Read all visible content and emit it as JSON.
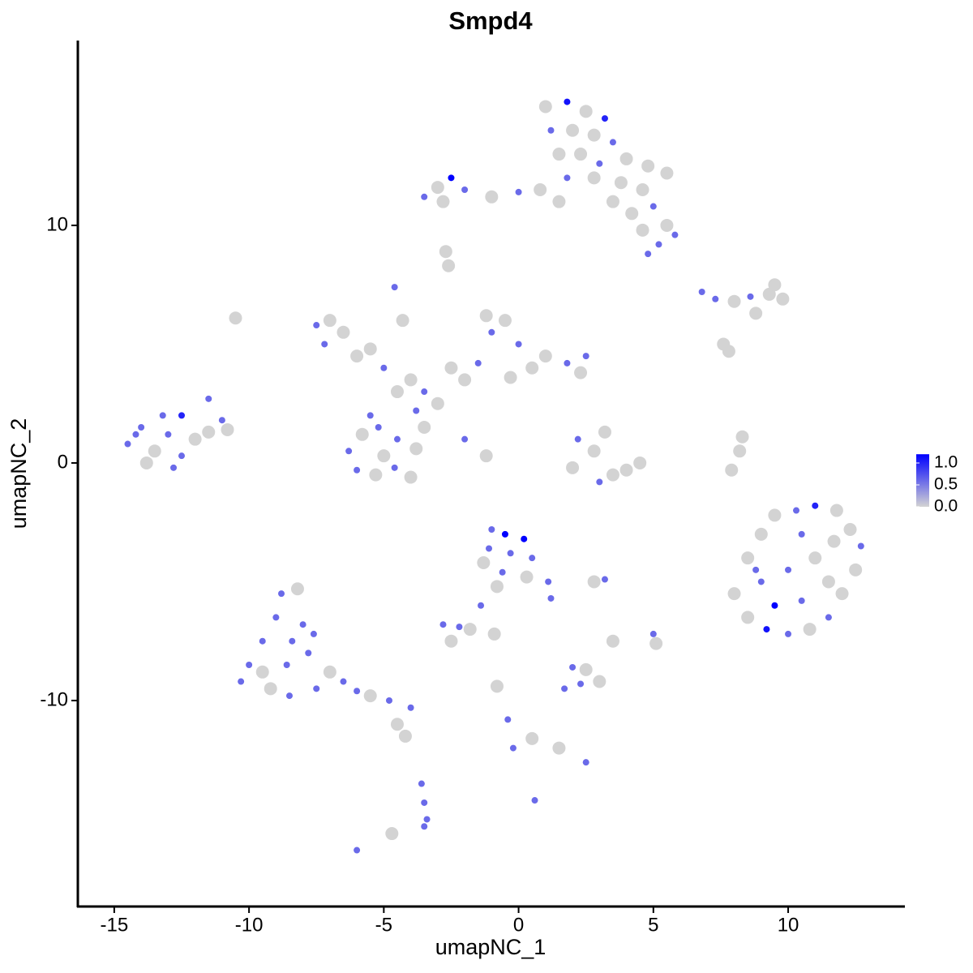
{
  "chart_data": {
    "type": "scatter",
    "title": "Smpd4",
    "xlabel": "umapNC_1",
    "ylabel": "umapNC_2",
    "x": [
      1,
      1.8,
      2.5,
      3.2,
      1.2,
      2,
      2.8,
      3.5,
      1.5,
      2.3,
      3,
      4,
      4.8,
      5.5,
      1.8,
      2.8,
      3.8,
      4.6,
      3.5,
      4.2,
      5,
      5.8,
      4.6,
      5.2,
      4.8,
      -3,
      -2.5,
      -2,
      -1,
      0,
      0.8,
      1.5,
      -3.5,
      -2.8,
      5.5,
      -14.5,
      -14,
      -13.5,
      -13,
      -12.5,
      -12,
      -13.2,
      -12.5,
      -11.5,
      -11,
      -13.8,
      -12.8,
      -11.5,
      -10.8,
      -14.2,
      -6.3,
      -5.8,
      -5.2,
      -4.5,
      -3.8,
      -6,
      -5.3,
      -4.6,
      -4,
      -5,
      -3.5,
      -5.5,
      -7.5,
      -7,
      -6.5,
      -7.2,
      -6,
      -5,
      -5.5,
      -4,
      -3.5,
      -4.5,
      -3,
      -3.8,
      -2.5,
      -1.5,
      -1,
      -0.5,
      -1.2,
      0,
      0.5,
      1,
      1.8,
      2.3,
      2.5,
      -0.3,
      -2,
      -4.6,
      -4.3,
      -2,
      -1.2,
      -10.5,
      2.2,
      2.8,
      3.5,
      4,
      3,
      2,
      4.5,
      3.2,
      8.5,
      9,
      9.5,
      10.3,
      11,
      11.8,
      12.3,
      12.7,
      12.5,
      12,
      11.5,
      10.8,
      10,
      9.2,
      8.5,
      8,
      9,
      10,
      11,
      10.5,
      11.7,
      9.5,
      10.5,
      11.5,
      8.8,
      8.2,
      8.3,
      7.9,
      -10,
      -9.5,
      -9,
      -8.8,
      -8.2,
      -8,
      -7.8,
      -9.2,
      -8.5,
      -7.5,
      -8.6,
      -9.5,
      -10.3,
      -7,
      -6.5,
      -6,
      -5.5,
      -4.8,
      -4,
      -7.6,
      -8.4,
      -3.6,
      -3.5,
      -3.4,
      -4.2,
      -6,
      -4.7,
      -1,
      -0.5,
      0.2,
      -1.1,
      -0.3,
      0.5,
      0.3,
      1.1,
      1.2,
      -0.6,
      -1.3,
      -2.8,
      -2.2,
      -1.8,
      -1.4,
      -0.8,
      -2.5,
      -0.9,
      1.7,
      2.3,
      3,
      2.5,
      2,
      5,
      5.1,
      3.2,
      2.8,
      3.5,
      -0.8,
      -0.4,
      -0.2,
      0.5,
      1.5,
      2.5,
      0.6,
      -4.5,
      6.8,
      7.3,
      8,
      8.6,
      9.3,
      9.8,
      9.5,
      8.8,
      7.6,
      7.8,
      -2.7,
      -2.6,
      -3.5
    ],
    "y": [
      15,
      15.2,
      14.8,
      14.5,
      14,
      14,
      13.8,
      13.5,
      13,
      13,
      12.6,
      12.8,
      12.5,
      12.2,
      12,
      12,
      11.8,
      11.5,
      11,
      10.5,
      10.8,
      9.6,
      9.8,
      9.2,
      8.8,
      11.6,
      12,
      11.5,
      11.2,
      11.4,
      11.5,
      11,
      11.2,
      11,
      10,
      0.8,
      1.5,
      0.5,
      1.2,
      0.3,
      1,
      2,
      2,
      1.3,
      1.8,
      0,
      -0.2,
      2.7,
      1.4,
      1.2,
      0.5,
      1.2,
      1.5,
      1,
      0.6,
      -0.3,
      -0.5,
      -0.2,
      -0.6,
      0.3,
      1.5,
      2,
      5.8,
      6,
      5.5,
      5,
      4.5,
      4,
      4.8,
      3.5,
      3,
      3,
      2.5,
      2.2,
      4,
      4.2,
      5.5,
      6,
      6.2,
      5,
      4,
      4.5,
      4.2,
      3.8,
      4.5,
      3.6,
      3.5,
      7.4,
      6,
      1,
      0.3,
      6.1,
      1,
      0.5,
      -0.5,
      -0.3,
      -0.8,
      -0.2,
      0,
      1.3,
      -4,
      -3,
      -2.2,
      -2,
      -1.8,
      -2,
      -2.8,
      -3.5,
      -4.5,
      -5.5,
      -6.5,
      -7,
      -7.2,
      -7,
      -6.5,
      -5.5,
      -5,
      -4.5,
      -4,
      -3,
      -3.3,
      -6,
      -5.8,
      -5,
      -4.5,
      0.5,
      1.1,
      -0.3,
      -8.5,
      -7.5,
      -6.5,
      -5.5,
      -5.3,
      -6.8,
      -8,
      -9.5,
      -9.8,
      -9.5,
      -8.5,
      -8.8,
      -9.2,
      -8.8,
      -9.2,
      -9.6,
      -9.8,
      -10,
      -10.3,
      -7.2,
      -7.5,
      -13.5,
      -14.3,
      -15,
      -11.5,
      -16.3,
      -15.6,
      -2.8,
      -3,
      -3.2,
      -3.6,
      -3.8,
      -4,
      -4.8,
      -5,
      -5.7,
      -4.6,
      -4.2,
      -6.8,
      -6.9,
      -7,
      -6,
      -5.2,
      -7.5,
      -7.2,
      -9.5,
      -9.3,
      -9.2,
      -8.7,
      -8.6,
      -7.2,
      -7.6,
      -4.9,
      -5,
      -7.5,
      -9.4,
      -10.8,
      -12,
      -11.6,
      -12,
      -12.6,
      -14.2,
      -11,
      7.2,
      6.9,
      6.8,
      7,
      7.1,
      6.9,
      7.5,
      6.3,
      5,
      4.7,
      8.9,
      8.3,
      -15.3
    ],
    "values": [
      0,
      1.1,
      0,
      1,
      0.6,
      0,
      0,
      0.6,
      0,
      0,
      0.6,
      0,
      0,
      0,
      0.6,
      0,
      0,
      0,
      0,
      0,
      0.6,
      0.6,
      0,
      0.6,
      0.6,
      0,
      1.2,
      0.6,
      0,
      0.6,
      0,
      0,
      0.6,
      0,
      0,
      0.6,
      0.6,
      0,
      0.6,
      0.6,
      0,
      0.6,
      1,
      0,
      0.6,
      0,
      0.6,
      0.6,
      0,
      0.6,
      0.6,
      0,
      0.6,
      0.6,
      0,
      0.6,
      0,
      0.6,
      0,
      0,
      0,
      0.6,
      0.6,
      0,
      0,
      0.6,
      0,
      0.6,
      0,
      0,
      0.6,
      0,
      0,
      0.6,
      0,
      0.6,
      0.6,
      0,
      0,
      0.6,
      0,
      0,
      0.6,
      0,
      0.6,
      0,
      0,
      0.6,
      0,
      0.6,
      0,
      0,
      0.6,
      0,
      0,
      0,
      0.6,
      0,
      0,
      0,
      0,
      0,
      0,
      0.6,
      1,
      0,
      0,
      0.6,
      0,
      0,
      0.6,
      0,
      0.6,
      1.1,
      0,
      0,
      0.6,
      0.6,
      0,
      0.6,
      0,
      1.2,
      0.6,
      0,
      0.6,
      0,
      0,
      0,
      0.6,
      0.6,
      0.6,
      0.6,
      0,
      0.6,
      0.6,
      0,
      0.6,
      0.6,
      0.6,
      0,
      0.6,
      0,
      0.6,
      0.6,
      0,
      0.6,
      0.6,
      0.6,
      0.6,
      0.6,
      0.6,
      0.6,
      0,
      0.6,
      0,
      0.6,
      1.2,
      1.2,
      0.6,
      0.6,
      0.6,
      0,
      0.6,
      0.6,
      0.6,
      0,
      0.6,
      0.6,
      0,
      0.6,
      0,
      0,
      0,
      0.6,
      0.6,
      0,
      0,
      0.6,
      0.6,
      0,
      0.6,
      0,
      0,
      0,
      0.6,
      0.6,
      0,
      0,
      0.6,
      0.6,
      0,
      0.6,
      0.6,
      0,
      0.6,
      0,
      0,
      0,
      0,
      0,
      0,
      0,
      0,
      0.6
    ],
    "color_low": "#d3d3d3",
    "color_high": "#0000ff",
    "clim": [
      0,
      1.2
    ],
    "cticks": [
      {
        "value": 0,
        "label": "0.0"
      },
      {
        "value": 0.5,
        "label": "0.5"
      },
      {
        "value": 1,
        "label": "1.0"
      }
    ],
    "xlim": [
      -16.35,
      14.3
    ],
    "ylim": [
      -18.67,
      17.78
    ],
    "xticks": [
      -15,
      -10,
      -5,
      0,
      5,
      10
    ],
    "yticks": [
      -10,
      0,
      10
    ]
  }
}
